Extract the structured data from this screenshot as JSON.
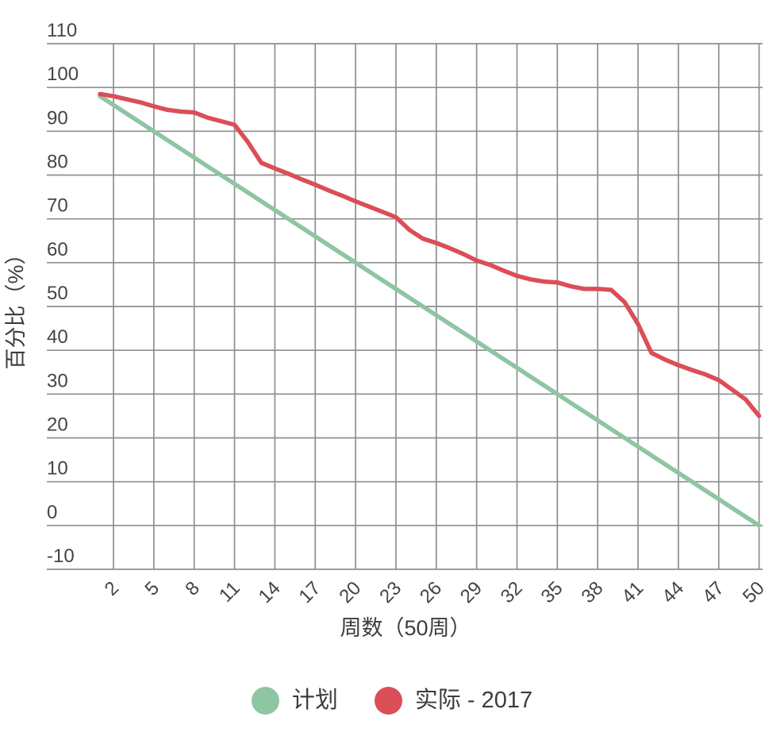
{
  "chart_data": {
    "type": "line",
    "title": "",
    "xlabel": "周数（50周）",
    "ylabel": "百分比（%）",
    "ylim": [
      -10,
      110
    ],
    "grid": true,
    "legend_position": "bottom",
    "yticks": [
      110,
      100,
      90,
      80,
      70,
      60,
      50,
      40,
      30,
      20,
      10,
      0,
      -10
    ],
    "xticks": [
      2,
      5,
      8,
      11,
      14,
      17,
      20,
      23,
      26,
      29,
      32,
      35,
      38,
      41,
      44,
      47,
      50
    ],
    "x": [
      1,
      2,
      3,
      4,
      5,
      6,
      7,
      8,
      9,
      10,
      11,
      12,
      13,
      14,
      15,
      16,
      17,
      18,
      19,
      20,
      21,
      22,
      23,
      24,
      25,
      26,
      27,
      28,
      29,
      30,
      31,
      32,
      33,
      34,
      35,
      36,
      37,
      38,
      39,
      40,
      41,
      42,
      43,
      44,
      45,
      46,
      47,
      48,
      49,
      50
    ],
    "series": [
      {
        "name": "计划",
        "color": "#8EC5A2",
        "values": [
          98,
          96,
          94,
          92,
          90,
          88,
          86,
          84,
          82,
          80,
          78,
          76,
          74,
          72,
          70,
          68,
          66,
          64,
          62,
          60,
          58,
          56,
          54,
          52,
          50,
          48,
          46,
          44,
          42,
          40,
          38,
          36,
          34,
          32,
          30,
          28,
          26,
          24,
          22,
          20,
          18,
          16,
          14,
          12,
          10,
          8,
          6,
          4,
          2,
          0
        ]
      },
      {
        "name": "实际 - 2017",
        "color": "#DB4E57",
        "values": [
          98.5,
          98,
          97.3,
          96.6,
          95.7,
          94.9,
          94.5,
          94.3,
          93.1,
          92.3,
          91.5,
          87.5,
          82.8,
          81.5,
          80.3,
          79,
          77.8,
          76.5,
          75.3,
          74,
          72.8,
          71.6,
          70.4,
          67.5,
          65.5,
          64.5,
          63.3,
          62,
          60.5,
          59.5,
          58.2,
          57,
          56.2,
          55.7,
          55.5,
          54.6,
          54,
          54,
          53.8,
          51,
          46,
          39.4,
          37.9,
          36.6,
          35.5,
          34.5,
          33.2,
          31,
          28.8,
          25
        ]
      }
    ]
  },
  "colors": {
    "grid": "#8f8f8f",
    "tick_text": "#454545",
    "title_text": "#3d3d3d",
    "background": "#ffffff"
  }
}
